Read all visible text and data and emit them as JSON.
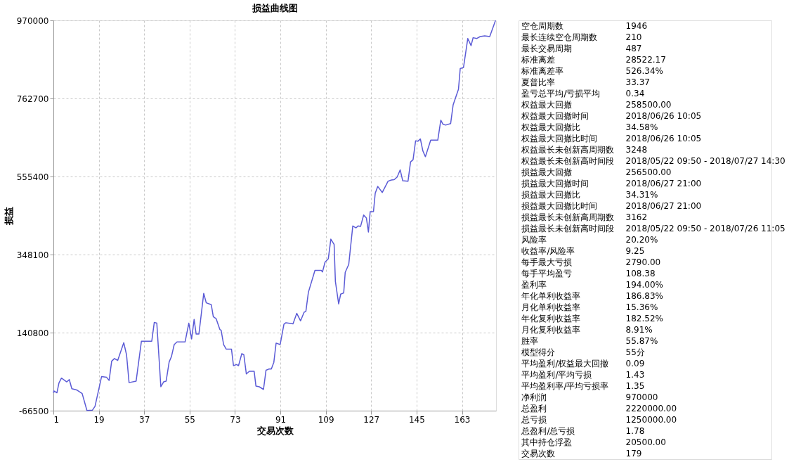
{
  "chart_data": [
    {
      "type": "line",
      "title": "损益曲线图",
      "xlabel": "交易次数",
      "ylabel": "损益",
      "grid": true,
      "xlim": [
        1,
        176.5
      ],
      "xticks": [
        1,
        19,
        37,
        55,
        73,
        91,
        109,
        127,
        145,
        163
      ],
      "ylim": [
        -66500,
        970000
      ],
      "yticks": [
        -66500,
        140800,
        348100,
        555400,
        762700,
        970000
      ],
      "x": [
        1,
        1.2,
        2.4,
        3.2,
        4.2,
        6.3,
        7.3,
        8.3,
        10.4,
        12.4,
        14.3,
        16.5,
        17.5,
        20.1,
        22.1,
        23.1,
        24.1,
        25.2,
        26.5,
        28.9,
        30.0,
        31.0,
        33.8,
        35.9,
        40.0,
        41.0,
        42.0,
        43.6,
        44.7,
        45.7,
        46.9,
        47.8,
        48.9,
        50.0,
        53.2,
        54.7,
        55.8,
        56.8,
        57.6,
        58.7,
        60.6,
        61.6,
        63.6,
        64.4,
        65.5,
        67.0,
        67.5,
        68.5,
        69.5,
        71.6,
        72.4,
        73.6,
        74.4,
        75.7,
        76.5,
        77.5,
        78.7,
        80.6,
        81.3,
        82.6,
        84.3,
        85.3,
        86.4,
        87.4,
        88.4,
        89.3,
        90.9,
        92.4,
        93.2,
        96.0,
        97.5,
        99.0,
        100.4,
        101.1,
        102.1,
        104.7,
        107.2,
        107.7,
        108.7,
        110.0,
        111.0,
        112.3,
        112.8,
        114.1,
        114.9,
        116.1,
        116.7,
        118.1,
        119.7,
        121.0,
        121.8,
        122.8,
        124.0,
        125.1,
        125.9,
        126.6,
        127.9,
        128.6,
        129.6,
        131.4,
        133.7,
        135.0,
        136.1,
        137.3,
        138.5,
        139.5,
        141.6,
        142.6,
        143.6,
        144.6,
        145.5,
        146.5,
        147.5,
        148.5,
        150.6,
        153.4,
        154.6,
        155.5,
        156.5,
        158.5,
        159.5,
        161.6,
        162.3,
        163.6,
        165.3,
        166.6,
        167.4,
        168.9,
        170.2,
        172.0,
        174.0,
        176.3
      ],
      "series": [
        {
          "color": "#5b5bd6",
          "values": [
            -19000,
            -14000,
            -19000,
            7000,
            20000,
            10000,
            16000,
            -8000,
            -12000,
            -21000,
            -66000,
            -65000,
            -55000,
            24000,
            22000,
            14000,
            65000,
            72000,
            67000,
            114000,
            82000,
            8000,
            12000,
            118000,
            118000,
            168000,
            166000,
            -3000,
            10000,
            12000,
            63000,
            77000,
            109000,
            116000,
            116000,
            166000,
            124000,
            176000,
            137000,
            137000,
            245000,
            220000,
            215000,
            183000,
            178000,
            149000,
            147000,
            109000,
            97000,
            97000,
            53000,
            56000,
            53000,
            85000,
            82000,
            31000,
            38000,
            38000,
            -1000,
            -3000,
            -10000,
            41000,
            44000,
            44000,
            62000,
            113000,
            109000,
            163000,
            167000,
            164000,
            192000,
            172000,
            195000,
            197000,
            248000,
            306000,
            306000,
            302000,
            328000,
            337000,
            389000,
            375000,
            277000,
            217000,
            243000,
            246000,
            301000,
            322000,
            424000,
            419000,
            424000,
            423000,
            453000,
            445000,
            408000,
            462000,
            462000,
            511000,
            529000,
            513000,
            543000,
            546000,
            547000,
            554000,
            573000,
            544000,
            543000,
            594000,
            600000,
            650000,
            649000,
            655000,
            623000,
            608000,
            652000,
            652000,
            705000,
            694000,
            692000,
            696000,
            746000,
            787000,
            842000,
            845000,
            922000,
            903000,
            924000,
            922000,
            927000,
            929000,
            927000,
            970000
          ]
        }
      ]
    },
    {
      "type": "other",
      "annotations": [
        "空仓周期数",
        "1946",
        "最长连续空仓周期数",
        "210",
        "最长交易周期",
        "487",
        "标准离差",
        "28522.17",
        "标准离差率",
        "526.34%",
        "夏普比率",
        "33.37",
        "盈亏总平均/亏损平均",
        "0.34",
        "权益最大回撤",
        "258500.00",
        "权益最大回撤时间",
        "2018/06/26 10:05",
        "权益最大回撤比",
        "34.58%",
        "权益最大回撤比时间",
        "2018/06/26 10:05",
        "权益最长未创新高周期数",
        "3248",
        "权益最长未创新高时间段",
        "2018/05/22 09:50 - 2018/07/27 14:30",
        "损益最大回撤",
        "256500.00",
        "损益最大回撤时间",
        "2018/06/27 21:00",
        "损益最大回撤比",
        "34.31%",
        "损益最大回撤比时间",
        "2018/06/27 21:00",
        "损益最长未创新高周期数",
        "3162",
        "损益最长未创新高时间段",
        "2018/05/22 09:50 - 2018/07/26 11:05",
        "风险率",
        "20.20%",
        "收益率/风险率",
        "9.25",
        "每手最大亏损",
        "2790.00",
        "每手平均盈亏",
        "108.38",
        "盈利率",
        "194.00%",
        "年化单利收益率",
        "186.83%",
        "月化单利收益率",
        "15.36%",
        "年化复利收益率",
        "182.52%",
        "月化复利收益率",
        "8.91%",
        "胜率",
        "55.87%",
        "模型得分",
        "55分",
        "平均盈利/权益最大回撤",
        "0.09",
        "平均盈利/平均亏损",
        "1.43",
        "平均盈利率/平均亏损率",
        "1.35",
        "净利润",
        "970000",
        "总盈利",
        "2220000.00",
        "总亏损",
        "1250000.00",
        "总盈利/总亏损",
        "1.78",
        "其中持仓浮盈",
        "20500.00",
        "交易次数",
        "179"
      ]
    }
  ]
}
